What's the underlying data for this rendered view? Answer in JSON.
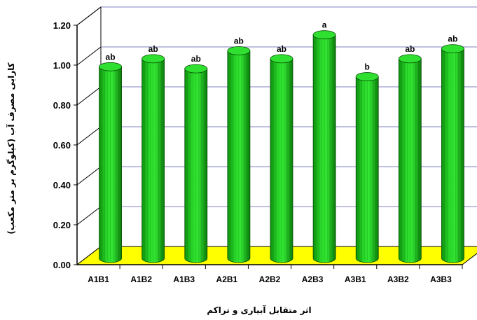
{
  "chart_data": {
    "type": "bar",
    "title": "",
    "xlabel": "اثر متقابل آبیاری و تراکم",
    "ylabel": "کارایی مصرف آب (کیلوگرم بر متر مکعب)",
    "ylim": [
      0,
      1.2
    ],
    "yticks": [
      "0.00",
      "0.20",
      "0.40",
      "0.60",
      "0.80",
      "1.00",
      "1.20"
    ],
    "categories": [
      "A1B1",
      "A1B2",
      "A1B3",
      "A2B1",
      "A2B2",
      "A2B3",
      "A3B1",
      "A3B2",
      "A3B3"
    ],
    "values": [
      0.96,
      1.0,
      0.95,
      1.04,
      1.0,
      1.12,
      0.91,
      1.0,
      1.05
    ],
    "labels": [
      "ab",
      "ab",
      "ab",
      "ab",
      "ab",
      "a",
      "b",
      "ab",
      "ab"
    ],
    "grid": true,
    "legend": "none",
    "colors": {
      "bar": "#22cc22",
      "bar_dark": "#0a8a0a",
      "floor": "#ffff00",
      "grid": "#8080c0"
    }
  }
}
